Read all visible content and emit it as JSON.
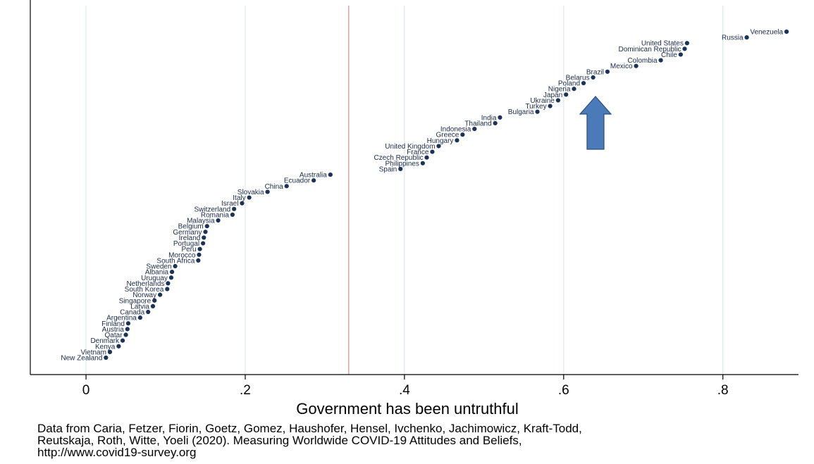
{
  "chart_data": {
    "type": "scatter",
    "xlabel": "Government has been untruthful",
    "xlim": [
      -0.07,
      0.895
    ],
    "xticks": [
      {
        "value": 0,
        "label": "0"
      },
      {
        "value": 0.2,
        "label": ".2"
      },
      {
        "value": 0.4,
        "label": ".4"
      },
      {
        "value": 0.6,
        "label": ".6"
      },
      {
        "value": 0.8,
        "label": ".8"
      }
    ],
    "grid": true,
    "reference_line_x": 0.33,
    "highlight_arrow_x": 0.64,
    "points": [
      {
        "country": "Venezuela",
        "x": 0.88
      },
      {
        "country": "Russia",
        "x": 0.83
      },
      {
        "country": "United States",
        "x": 0.755
      },
      {
        "country": "Dominican Republic",
        "x": 0.752
      },
      {
        "country": "Chile",
        "x": 0.747
      },
      {
        "country": "Colombia",
        "x": 0.722
      },
      {
        "country": "Mexico",
        "x": 0.691
      },
      {
        "country": "Brazil",
        "x": 0.655
      },
      {
        "country": "Belarus",
        "x": 0.637
      },
      {
        "country": "Poland",
        "x": 0.625
      },
      {
        "country": "Nigeria",
        "x": 0.613
      },
      {
        "country": "Japan",
        "x": 0.603
      },
      {
        "country": "Ukraine",
        "x": 0.593
      },
      {
        "country": "Turkey",
        "x": 0.583
      },
      {
        "country": "Bulgaria",
        "x": 0.567
      },
      {
        "country": "India",
        "x": 0.52
      },
      {
        "country": "Thailand",
        "x": 0.514
      },
      {
        "country": "Indonesia",
        "x": 0.488
      },
      {
        "country": "Greece",
        "x": 0.473
      },
      {
        "country": "Hungary",
        "x": 0.466
      },
      {
        "country": "United Kingdom",
        "x": 0.443
      },
      {
        "country": "France",
        "x": 0.435
      },
      {
        "country": "Czech Republic",
        "x": 0.428
      },
      {
        "country": "Philippines",
        "x": 0.423
      },
      {
        "country": "Spain",
        "x": 0.395
      },
      {
        "country": "Australia",
        "x": 0.307
      },
      {
        "country": "Ecuador",
        "x": 0.286
      },
      {
        "country": "China",
        "x": 0.252
      },
      {
        "country": "Slovakia",
        "x": 0.228
      },
      {
        "country": "Italy",
        "x": 0.205
      },
      {
        "country": "Israel",
        "x": 0.196
      },
      {
        "country": "Switzerland",
        "x": 0.186
      },
      {
        "country": "Romania",
        "x": 0.184
      },
      {
        "country": "Malaysia",
        "x": 0.166
      },
      {
        "country": "Belgium",
        "x": 0.152
      },
      {
        "country": "Germany",
        "x": 0.15
      },
      {
        "country": "Ireland",
        "x": 0.148
      },
      {
        "country": "Portugal",
        "x": 0.147
      },
      {
        "country": "Peru",
        "x": 0.143
      },
      {
        "country": "Morocco",
        "x": 0.142
      },
      {
        "country": "South Africa",
        "x": 0.141
      },
      {
        "country": "Sweden",
        "x": 0.112
      },
      {
        "country": "Albania",
        "x": 0.108
      },
      {
        "country": "Uruguay",
        "x": 0.107
      },
      {
        "country": "Netherlands",
        "x": 0.103
      },
      {
        "country": "South Korea",
        "x": 0.102
      },
      {
        "country": "Norway",
        "x": 0.093
      },
      {
        "country": "Singapore",
        "x": 0.086
      },
      {
        "country": "Latvia",
        "x": 0.084
      },
      {
        "country": "Canada",
        "x": 0.078
      },
      {
        "country": "Argentina",
        "x": 0.068
      },
      {
        "country": "Finland",
        "x": 0.053
      },
      {
        "country": "Austria",
        "x": 0.052
      },
      {
        "country": "Qatar",
        "x": 0.05
      },
      {
        "country": "Denmark",
        "x": 0.046
      },
      {
        "country": "Kenya",
        "x": 0.041
      },
      {
        "country": "Vietnam",
        "x": 0.03
      },
      {
        "country": "New Zealand",
        "x": 0.025
      }
    ],
    "colors": {
      "marker": "#1a3358",
      "grid": "#e0ecf2",
      "reference_line": "#d9a7a7",
      "arrow_fill": "#4a7ab8",
      "arrow_stroke": "#2c4d7a"
    }
  },
  "source_note": {
    "line1": "Data from Caria, Fetzer, Fiorin, Goetz, Gomez, Haushofer, Hensel, Ivchenko, Jachimowicz, Kraft-Todd,",
    "line2": "Reutskaja, Roth, Witte, Yoeli (2020). Measuring Worldwide COVID-19 Attitudes and Beliefs,",
    "line3": "http://www.covid19-survey.org"
  }
}
